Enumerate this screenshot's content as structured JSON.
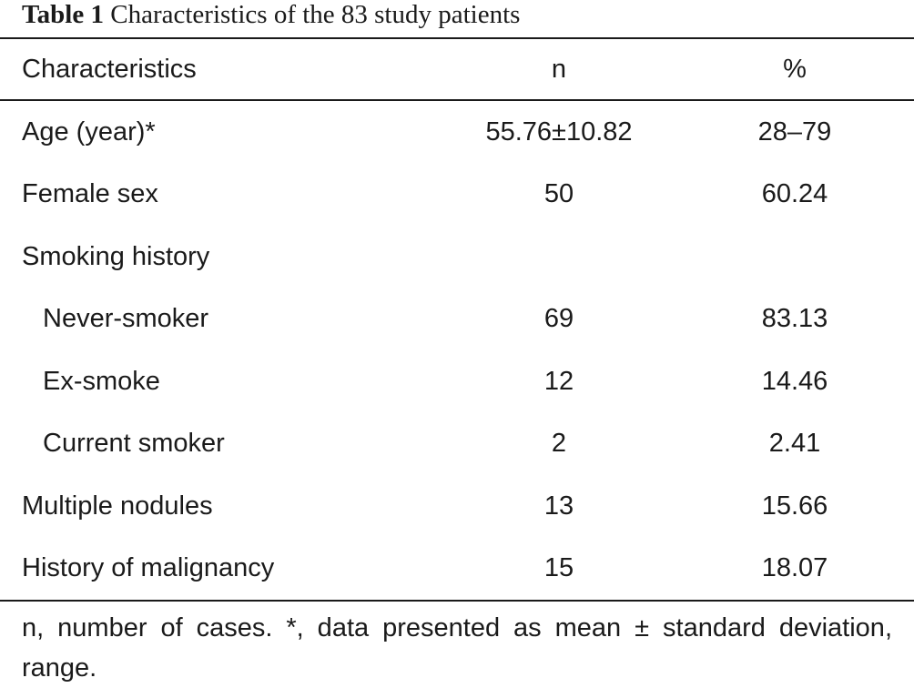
{
  "caption": {
    "label": "Table 1",
    "text": "Characteristics of the 83 study patients"
  },
  "table": {
    "headers": [
      "Characteristics",
      "n",
      "%"
    ],
    "rows": [
      {
        "label": "Age (year)*",
        "n": "55.76±10.82",
        "pct": "28–79",
        "indent": false
      },
      {
        "label": "Female sex",
        "n": "50",
        "pct": "60.24",
        "indent": false
      },
      {
        "label": "Smoking history",
        "n": "",
        "pct": "",
        "indent": false
      },
      {
        "label": "Never-smoker",
        "n": "69",
        "pct": "83.13",
        "indent": true
      },
      {
        "label": "Ex-smoke",
        "n": "12",
        "pct": "14.46",
        "indent": true
      },
      {
        "label": "Current smoker",
        "n": "2",
        "pct": "2.41",
        "indent": true
      },
      {
        "label": "Multiple nodules",
        "n": "13",
        "pct": "15.66",
        "indent": false
      },
      {
        "label": "History of malignancy",
        "n": "15",
        "pct": "18.07",
        "indent": false
      }
    ]
  },
  "footnote": "n, number of cases. *, data presented as mean ± standard deviation, range."
}
